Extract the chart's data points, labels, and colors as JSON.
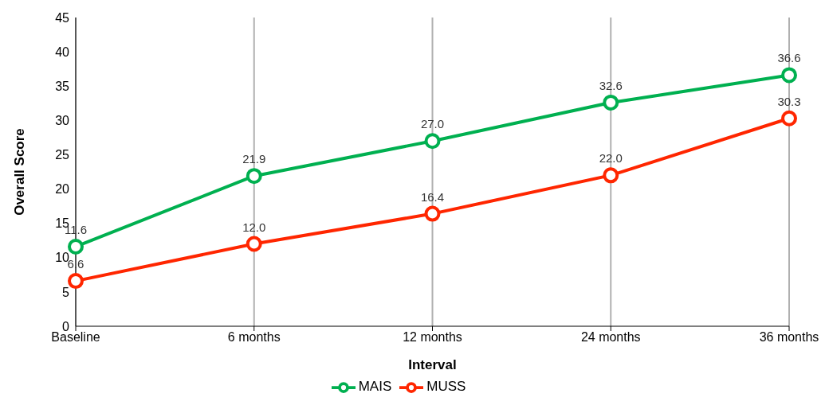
{
  "chart_data": {
    "type": "line",
    "xlabel": "Interval",
    "ylabel": "Overall Score",
    "categories": [
      "Baseline",
      "6 months",
      "12 months",
      "24 months",
      "36 months"
    ],
    "series": [
      {
        "name": "MAIS",
        "color": "#00b050",
        "values": [
          11.6,
          21.9,
          27.0,
          32.6,
          36.6
        ],
        "value_labels": [
          "11.6",
          "21.9",
          "27.0",
          "32.6",
          "36.6"
        ]
      },
      {
        "name": "MUSS",
        "color": "#ff2600",
        "values": [
          6.6,
          12.0,
          16.4,
          22.0,
          30.3
        ],
        "value_labels": [
          "6.6",
          "12.0",
          "16.4",
          "22.0",
          "30.3"
        ]
      }
    ],
    "ylim": [
      0,
      45
    ],
    "yticks": [
      0,
      5,
      10,
      15,
      20,
      25,
      30,
      35,
      40,
      45
    ],
    "grid": "x",
    "legend": "bottom",
    "marker": "circle",
    "line_style": "solid"
  }
}
